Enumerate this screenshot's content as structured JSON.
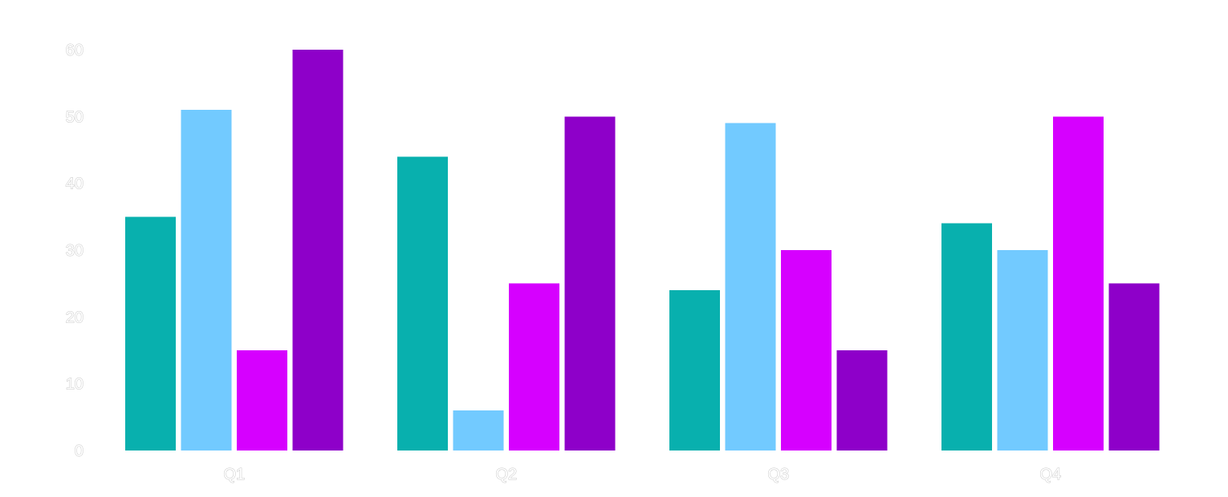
{
  "chart_data": {
    "type": "bar",
    "categories": [
      "Q1",
      "Q2",
      "Q3",
      "Q4"
    ],
    "series": [
      {
        "values": [
          35,
          44,
          24,
          34
        ],
        "color": "#08b0ae"
      },
      {
        "values": [
          51,
          6,
          49,
          30
        ],
        "color": "#72caff"
      },
      {
        "values": [
          15,
          25,
          30,
          50
        ],
        "color": "#d600ff"
      },
      {
        "values": [
          60,
          50,
          15,
          25
        ],
        "color": "#8e00c9"
      }
    ],
    "yticks": [
      0,
      10,
      20,
      30,
      40,
      50,
      60
    ],
    "ylim": [
      0,
      60
    ],
    "grid": false,
    "legend": "none",
    "title": "",
    "xlabel": "",
    "ylabel": ""
  }
}
